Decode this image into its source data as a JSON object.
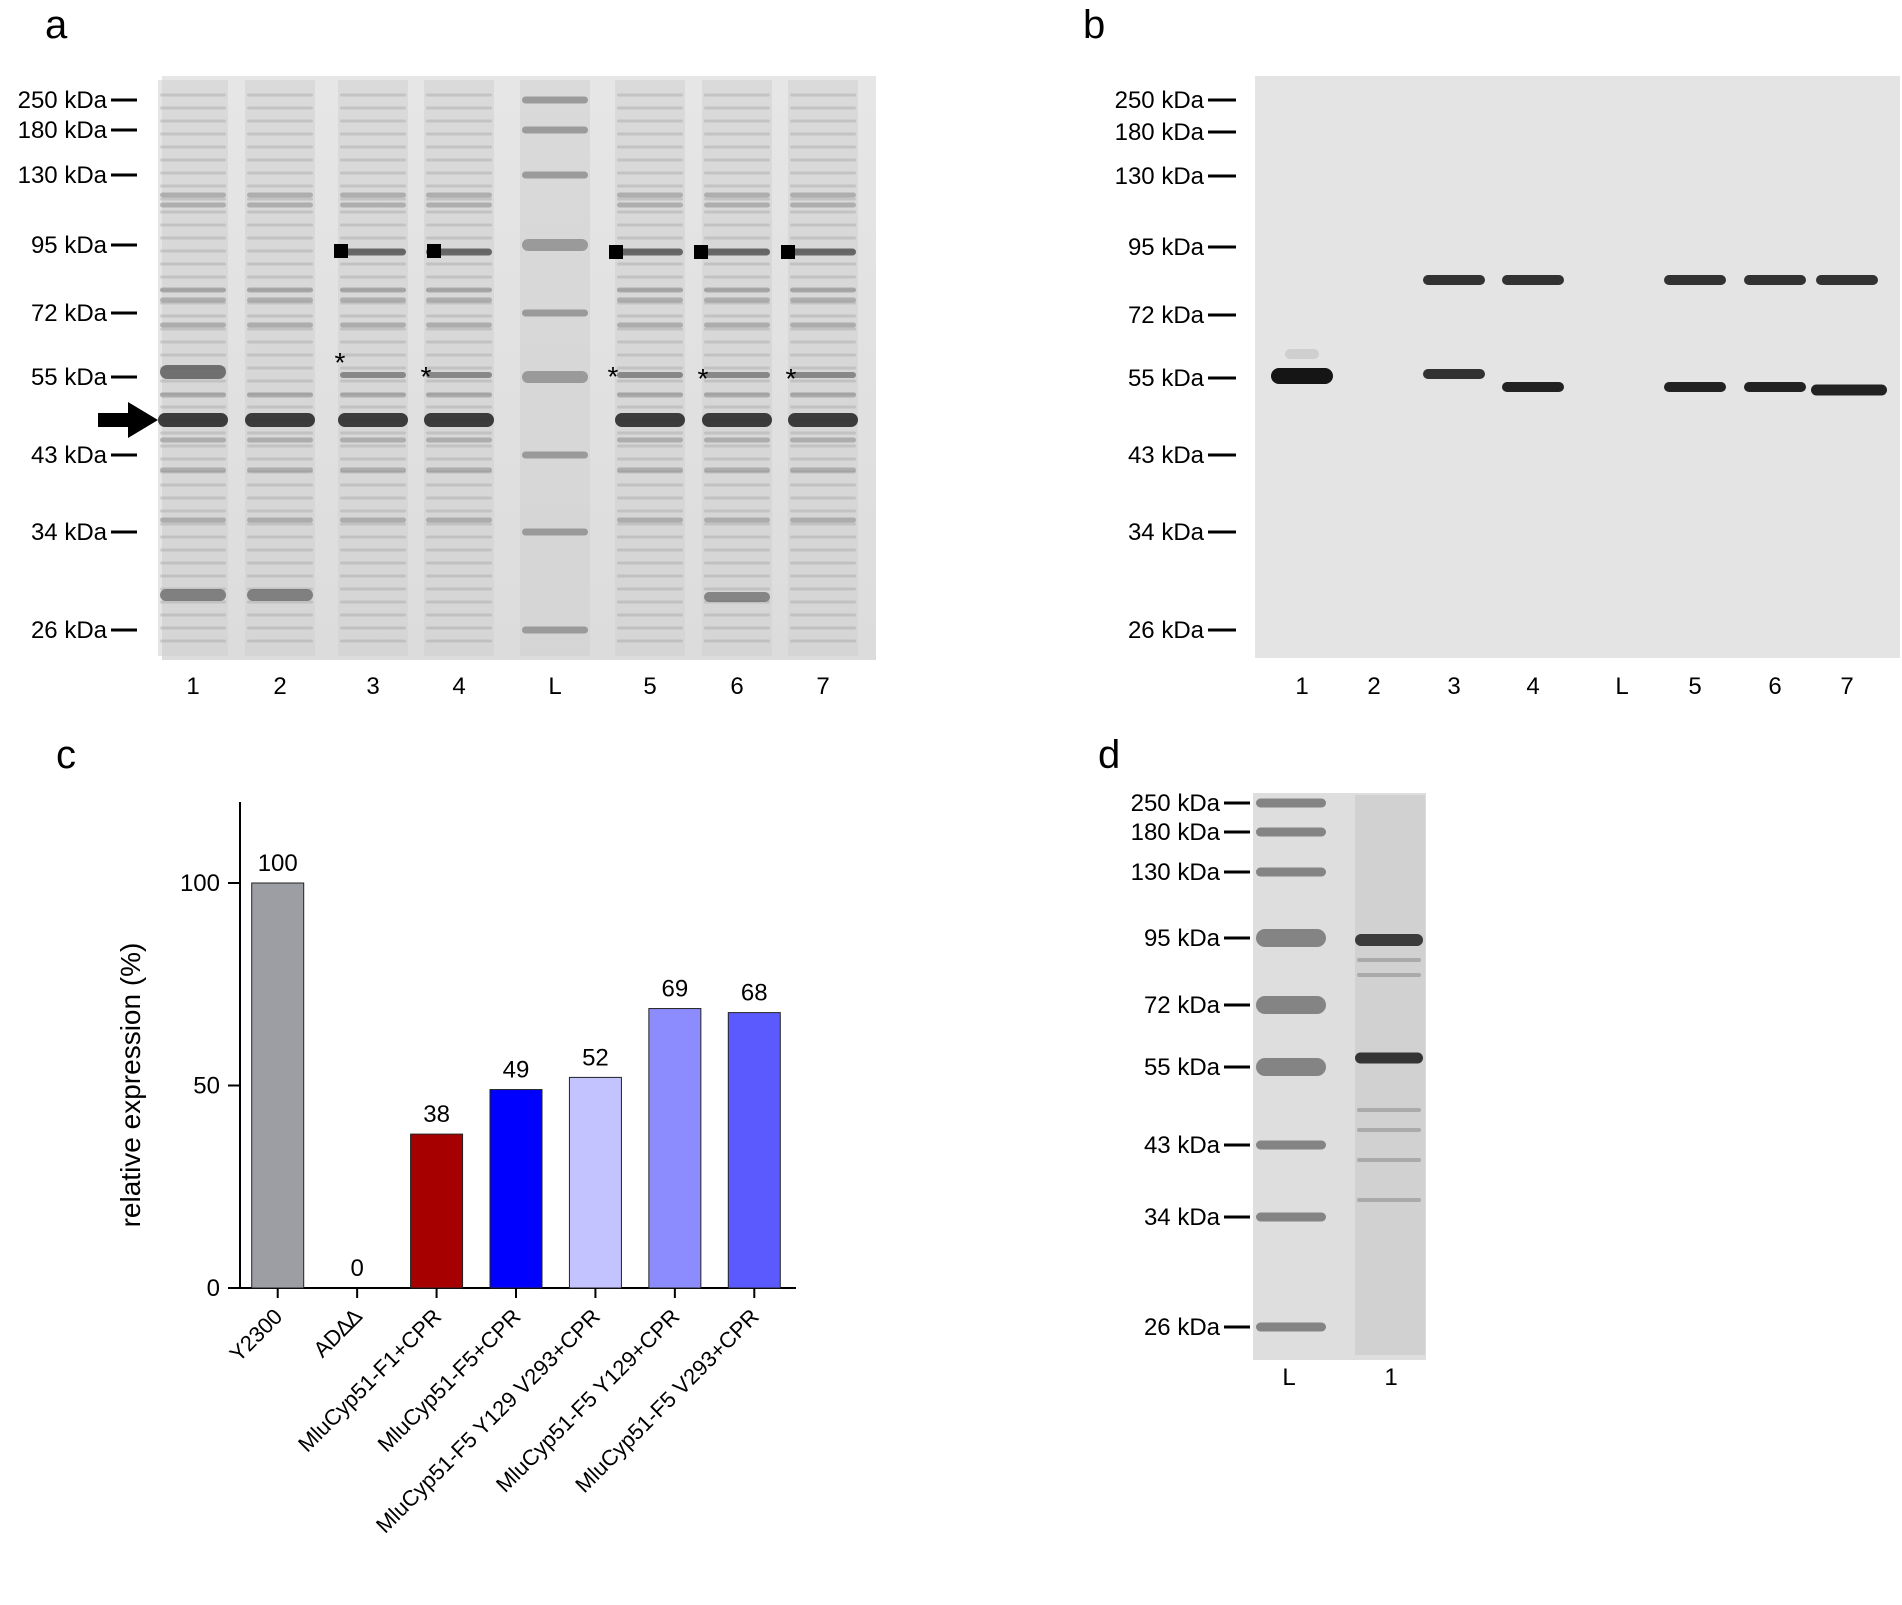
{
  "panels": {
    "a": {
      "letter": "a",
      "markers": [
        "250 kDa",
        "180 kDa",
        "130 kDa",
        "95 kDa",
        "72 kDa",
        "55 kDa",
        "43 kDa",
        "34 kDa",
        "26 kDa"
      ],
      "lanes": [
        "1",
        "2",
        "3",
        "4",
        "L",
        "5",
        "6",
        "7"
      ],
      "asterisk": "*"
    },
    "b": {
      "letter": "b",
      "markers": [
        "250 kDa",
        "180 kDa",
        "130 kDa",
        "95 kDa",
        "72 kDa",
        "55 kDa",
        "43 kDa",
        "34 kDa",
        "26 kDa"
      ],
      "lanes": [
        "1",
        "2",
        "3",
        "4",
        "L",
        "5",
        "6",
        "7"
      ]
    },
    "c": {
      "letter": "c"
    },
    "d": {
      "letter": "d",
      "markers": [
        "250 kDa",
        "180 kDa",
        "130 kDa",
        "95 kDa",
        "72 kDa",
        "55 kDa",
        "43 kDa",
        "34 kDa",
        "26 kDa"
      ],
      "lanes": [
        "L",
        "1"
      ]
    }
  },
  "chart_data": {
    "type": "bar",
    "categories": [
      "Y2300",
      "AD∆∆",
      "MluCyp51-F1+CPR",
      "MluCyp51-F5+CPR",
      "MluCyp51-F5 Y129 V293+CPR",
      "MluCyp51-F5 Y129+CPR",
      "MluCyp51-F5 V293+CPR"
    ],
    "values": [
      100,
      0,
      38,
      49,
      52,
      69,
      68
    ],
    "value_labels": [
      "100",
      "0",
      "38",
      "49",
      "52",
      "69",
      "68"
    ],
    "colors": [
      "#9d9ea3",
      "#ffffff",
      "#a60000",
      "#0000ff",
      "#c3c3ff",
      "#8c8cff",
      "#5a5aff"
    ],
    "ylabel": "relative expression (%)",
    "xlabel": "",
    "yticks": [
      0,
      50,
      100
    ],
    "ylim": [
      0,
      120
    ],
    "grid": false,
    "legend": "none"
  }
}
